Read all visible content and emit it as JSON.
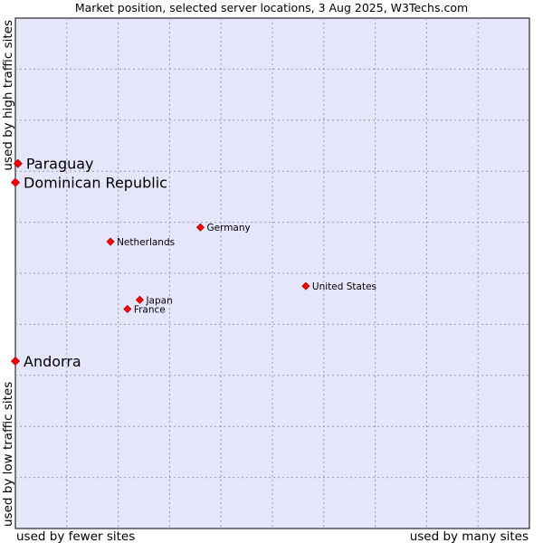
{
  "chart_data": {
    "type": "scatter",
    "title": "Market position, selected server locations, 3 Aug 2025, W3Techs.com",
    "xlabel_left": "used by fewer sites",
    "xlabel_right": "used by many sites",
    "ylabel_top": "used by high traffic sites",
    "ylabel_bottom": "used by low traffic sites",
    "grid": true,
    "xlim": [
      0,
      10
    ],
    "ylim": [
      0,
      10
    ],
    "colors": {
      "plot_background": "#e6e6fa",
      "grid": "#9999aa",
      "point": "#ff0000",
      "point_outline": "#aa0000",
      "text": "#000000"
    },
    "points": [
      {
        "label": "Paraguay",
        "x": 0.05,
        "y": 7.15,
        "emphasis": "large"
      },
      {
        "label": "Dominican Republic",
        "x": 0.0,
        "y": 6.78,
        "emphasis": "large"
      },
      {
        "label": "Andorra",
        "x": 0.0,
        "y": 3.28,
        "emphasis": "large"
      },
      {
        "label": "Germany",
        "x": 3.6,
        "y": 5.9,
        "emphasis": "normal"
      },
      {
        "label": "Netherlands",
        "x": 1.85,
        "y": 5.62,
        "emphasis": "normal"
      },
      {
        "label": "United States",
        "x": 5.65,
        "y": 4.75,
        "emphasis": "normal"
      },
      {
        "label": "Japan",
        "x": 2.42,
        "y": 4.48,
        "emphasis": "normal"
      },
      {
        "label": "France",
        "x": 2.18,
        "y": 4.3,
        "emphasis": "normal"
      }
    ]
  }
}
